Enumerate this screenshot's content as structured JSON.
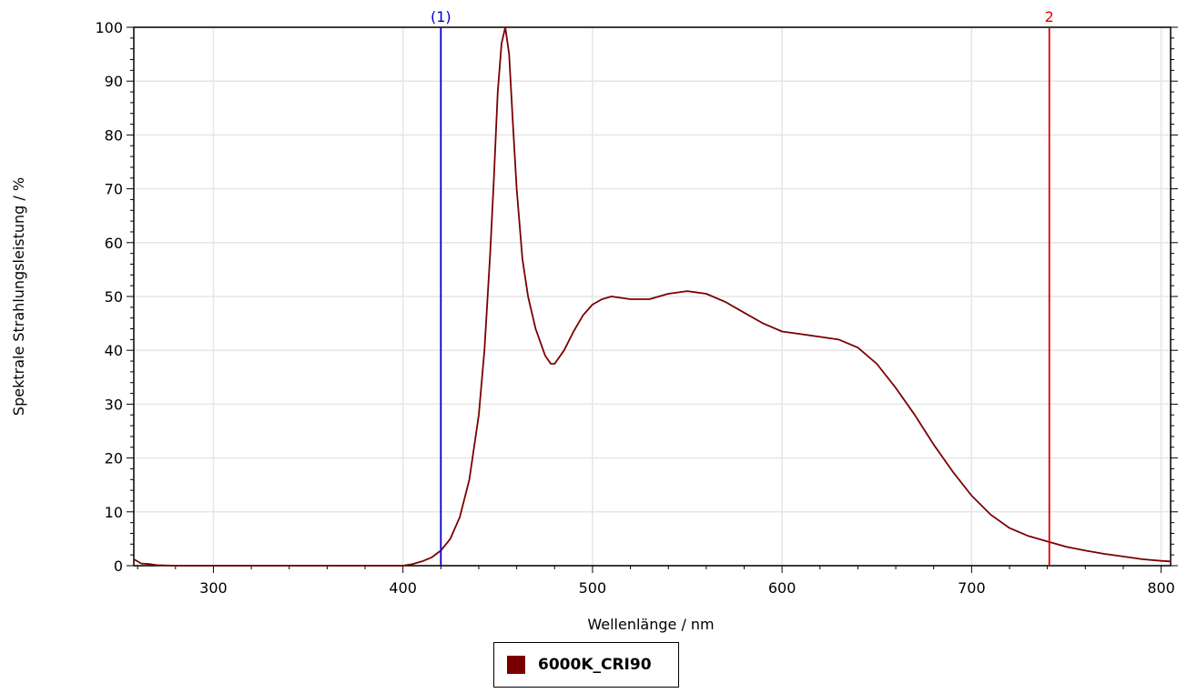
{
  "chart_data": {
    "type": "line",
    "xlabel": "Wellenlänge / nm",
    "ylabel": "Spektrale Strahlungsleistung / %",
    "xlim": [
      258,
      805
    ],
    "ylim": [
      0,
      100
    ],
    "x_ticks": [
      300,
      400,
      500,
      600,
      700,
      800
    ],
    "y_ticks": [
      0,
      10,
      20,
      30,
      40,
      50,
      60,
      70,
      80,
      90,
      100
    ],
    "grid": true,
    "legend_position": "bottom-center",
    "series": [
      {
        "name": "6000K_CRI90",
        "color": "#7a0000",
        "x": [
          258,
          262,
          266,
          270,
          280,
          300,
          350,
          400,
          405,
          410,
          415,
          420,
          425,
          430,
          435,
          440,
          443,
          446,
          448,
          450,
          452,
          454,
          456,
          458,
          460,
          463,
          466,
          470,
          475,
          478,
          480,
          485,
          490,
          495,
          500,
          505,
          510,
          520,
          530,
          540,
          550,
          560,
          570,
          580,
          590,
          600,
          610,
          620,
          630,
          640,
          650,
          660,
          670,
          680,
          690,
          700,
          710,
          720,
          730,
          740,
          750,
          760,
          770,
          780,
          790,
          800,
          805
        ],
        "y": [
          1.2,
          0.4,
          0.3,
          0.1,
          0,
          0,
          0,
          0,
          0.3,
          0.8,
          1.5,
          2.8,
          5,
          9,
          16,
          28,
          40,
          58,
          72,
          88,
          97,
          100,
          95,
          82,
          70,
          57,
          50,
          44,
          39,
          37.5,
          37.5,
          40,
          43.5,
          46.5,
          48.5,
          49.5,
          50,
          49.5,
          49.5,
          50.5,
          51,
          50.5,
          49,
          47,
          45,
          43.5,
          43,
          42.5,
          42,
          40.5,
          37.5,
          33,
          28,
          22.5,
          17.5,
          13,
          9.5,
          7,
          5.5,
          4.5,
          3.5,
          2.8,
          2.2,
          1.7,
          1.2,
          0.9,
          0.8
        ]
      }
    ],
    "markers": [
      {
        "label": "(1)",
        "x": 420,
        "color": "#0000cc"
      },
      {
        "label": "2",
        "x": 741,
        "color": "#dd0000"
      }
    ]
  }
}
